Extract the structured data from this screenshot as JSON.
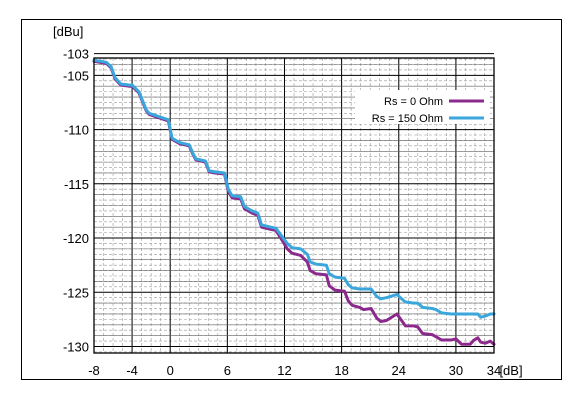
{
  "chart_data": {
    "type": "line",
    "title": "",
    "ylabel": "[dBu]",
    "xlabel": "[dB]",
    "xlim": [
      -8,
      34
    ],
    "ylim": [
      -131,
      -103
    ],
    "xticks": [
      -8,
      -4,
      0,
      6,
      12,
      18,
      24,
      30,
      34
    ],
    "yticks": [
      -103,
      -105,
      -110,
      -115,
      -120,
      -125,
      -130
    ],
    "grid": true,
    "legend_position": "top-right",
    "series": [
      {
        "name": "Rs = 0 Ohm",
        "color": "#8b2a8c",
        "x": [
          -8,
          -6.7,
          -6.2,
          -5.8,
          -5.2,
          -4.3,
          -4.0,
          -3.3,
          -2.5,
          -2.2,
          -1.2,
          -0.2,
          0.2,
          1.0,
          2.0,
          2.4,
          2.7,
          3.7,
          4.1,
          4.7,
          5.7,
          6.1,
          6.5,
          7.4,
          7.8,
          8.6,
          9.2,
          9.6,
          10.6,
          11.1,
          11.6,
          12.3,
          12.8,
          13.7,
          14.4,
          14.7,
          15.3,
          16.4,
          16.7,
          17.3,
          18.3,
          18.7,
          19.1,
          19.9,
          20.3,
          21.1,
          21.7,
          22.1,
          22.7,
          23.8,
          24.3,
          24.7,
          25.6,
          26.0,
          26.5,
          27.5,
          27.9,
          28.5,
          29.5,
          30.0,
          30.6,
          31.5,
          31.9,
          32.3,
          32.6,
          33.1,
          33.6,
          34.0
        ],
        "values": [
          -103.7,
          -103.9,
          -104.3,
          -105.3,
          -105.9,
          -106.0,
          -106.0,
          -106.6,
          -108.3,
          -108.6,
          -108.9,
          -109.2,
          -110.9,
          -111.3,
          -111.5,
          -112.3,
          -112.8,
          -113.0,
          -113.9,
          -114.0,
          -114.1,
          -115.7,
          -116.3,
          -116.4,
          -117.3,
          -117.7,
          -117.9,
          -119.0,
          -119.2,
          -119.3,
          -120.0,
          -121.0,
          -121.4,
          -121.6,
          -122.2,
          -123.0,
          -123.3,
          -123.4,
          -124.4,
          -124.8,
          -124.9,
          -125.8,
          -126.2,
          -126.4,
          -126.6,
          -126.5,
          -127.4,
          -127.7,
          -127.6,
          -127.0,
          -127.6,
          -128.1,
          -128.1,
          -128.2,
          -128.8,
          -128.9,
          -129.1,
          -129.4,
          -129.4,
          -129.3,
          -129.8,
          -129.8,
          -129.4,
          -129.2,
          -129.6,
          -129.7,
          -129.5,
          -129.8
        ]
      },
      {
        "name": "Rs = 150 Ohm",
        "color": "#3aa6dc",
        "x": [
          -8,
          -6.7,
          -6.2,
          -5.8,
          -5.2,
          -4.3,
          -4.0,
          -3.3,
          -2.5,
          -2.2,
          -1.2,
          -0.2,
          0.2,
          1.0,
          2.0,
          2.4,
          2.7,
          3.7,
          4.1,
          4.7,
          5.7,
          6.1,
          6.5,
          7.4,
          7.8,
          8.6,
          9.2,
          9.6,
          10.6,
          11.1,
          11.6,
          12.3,
          12.8,
          13.7,
          14.4,
          14.7,
          15.3,
          16.4,
          16.7,
          17.3,
          18.3,
          18.7,
          19.1,
          19.9,
          20.3,
          21.1,
          21.7,
          22.1,
          22.7,
          23.8,
          24.3,
          24.7,
          25.6,
          26.0,
          26.5,
          27.5,
          27.9,
          28.5,
          29.5,
          30.0,
          30.6,
          31.5,
          31.9,
          32.3,
          32.6,
          33.1,
          33.6,
          34.0
        ],
        "values": [
          -103.6,
          -103.8,
          -104.2,
          -105.2,
          -105.8,
          -105.9,
          -105.9,
          -106.5,
          -108.2,
          -108.5,
          -108.8,
          -109.1,
          -110.8,
          -111.2,
          -111.4,
          -112.2,
          -112.7,
          -112.9,
          -113.8,
          -113.9,
          -114.0,
          -115.5,
          -116.1,
          -116.2,
          -117.1,
          -117.5,
          -117.7,
          -118.8,
          -119.0,
          -119.1,
          -119.7,
          -120.5,
          -120.9,
          -121.0,
          -121.5,
          -122.2,
          -122.4,
          -122.5,
          -123.3,
          -123.6,
          -123.7,
          -124.3,
          -124.6,
          -124.7,
          -124.7,
          -124.7,
          -125.4,
          -125.6,
          -125.5,
          -125.2,
          -125.6,
          -125.9,
          -126.0,
          -126.0,
          -126.4,
          -126.5,
          -126.6,
          -126.9,
          -127.0,
          -127.0,
          -127.0,
          -127.0,
          -127.0,
          -127.0,
          -127.3,
          -127.2,
          -127.0,
          -127.0
        ]
      }
    ]
  }
}
